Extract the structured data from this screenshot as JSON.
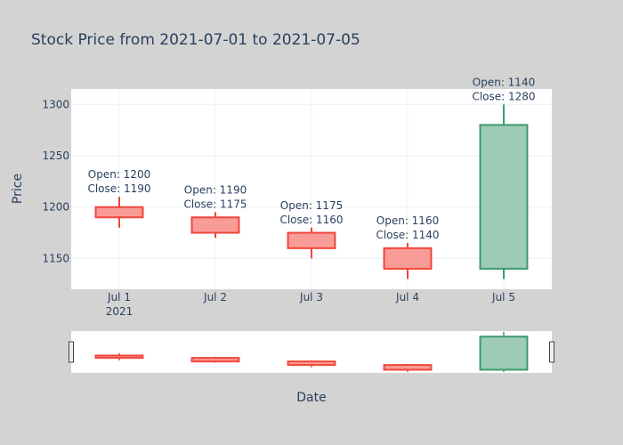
{
  "chart_data": {
    "type": "candlestick",
    "title": "Stock Price from 2021-07-01 to 2021-07-05",
    "xlabel": "Date",
    "ylabel": "Price",
    "x_tick_labels": [
      "Jul 1",
      "Jul 2",
      "Jul 3",
      "Jul 4",
      "Jul 5"
    ],
    "x_year_label": "2021",
    "y_ticks": [
      1150,
      1200,
      1250,
      1300
    ],
    "ylim": [
      1120,
      1315
    ],
    "candles": [
      {
        "date": "2021-07-01",
        "open": 1200,
        "high": 1210,
        "low": 1180,
        "close": 1190
      },
      {
        "date": "2021-07-02",
        "open": 1190,
        "high": 1195,
        "low": 1170,
        "close": 1175
      },
      {
        "date": "2021-07-03",
        "open": 1175,
        "high": 1180,
        "low": 1150,
        "close": 1160
      },
      {
        "date": "2021-07-04",
        "open": 1160,
        "high": 1165,
        "low": 1130,
        "close": 1140
      },
      {
        "date": "2021-07-05",
        "open": 1140,
        "high": 1300,
        "low": 1130,
        "close": 1280
      }
    ],
    "annotations": [
      {
        "line1": "Open: 1200",
        "line2": "Close: 1190"
      },
      {
        "line1": "Open: 1190",
        "line2": "Close: 1175"
      },
      {
        "line1": "Open: 1175",
        "line2": "Close: 1160"
      },
      {
        "line1": "Open: 1160",
        "line2": "Close: 1140"
      },
      {
        "line1": "Open: 1140",
        "line2": "Close: 1280"
      }
    ],
    "increasing_color": "#3d9970",
    "increasing_fill": "#9ecbb5",
    "decreasing_color": "#f0463a",
    "decreasing_fill": "#f99b96",
    "grid": true,
    "rangeslider": true
  },
  "colors": {
    "background": "#d3d3d3",
    "plot_background": "#ffffff",
    "text": "#2a3f5f"
  }
}
